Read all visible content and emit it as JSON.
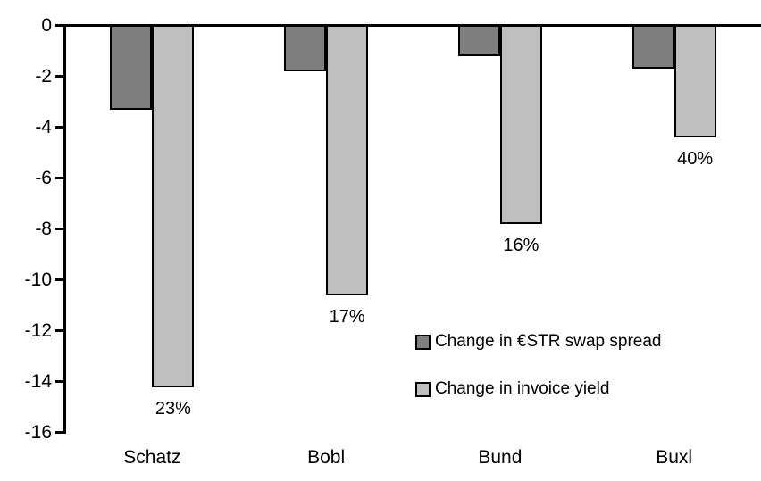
{
  "chart_data": {
    "type": "bar",
    "title": "",
    "xlabel": "",
    "ylabel": "",
    "categories": [
      "Schatz",
      "Bobl",
      "Bund",
      "Buxl"
    ],
    "series": [
      {
        "name": "Change in €STR swap spread",
        "color": "#7f7f7f",
        "values": [
          -3.3,
          -1.8,
          -1.2,
          -1.7
        ]
      },
      {
        "name": "Change in invoice yield",
        "color": "#bfbfbf",
        "values": [
          -14.2,
          -10.6,
          -7.8,
          -4.4
        ],
        "point_labels": [
          "23%",
          "17%",
          "16%",
          "40%"
        ]
      }
    ],
    "ylim": [
      -16,
      0
    ],
    "yticks": [
      "0",
      "-2",
      "-4",
      "-6",
      "-8",
      "-10",
      "-12",
      "-14",
      "-16"
    ],
    "ytick_values": [
      0,
      -2,
      -4,
      -6,
      -8,
      -10,
      -12,
      -14,
      -16
    ],
    "grid": false,
    "legend_position": "center-right-inside",
    "bar_border_color": "#000000",
    "axis_color": "#000000",
    "background_color": "#ffffff"
  }
}
